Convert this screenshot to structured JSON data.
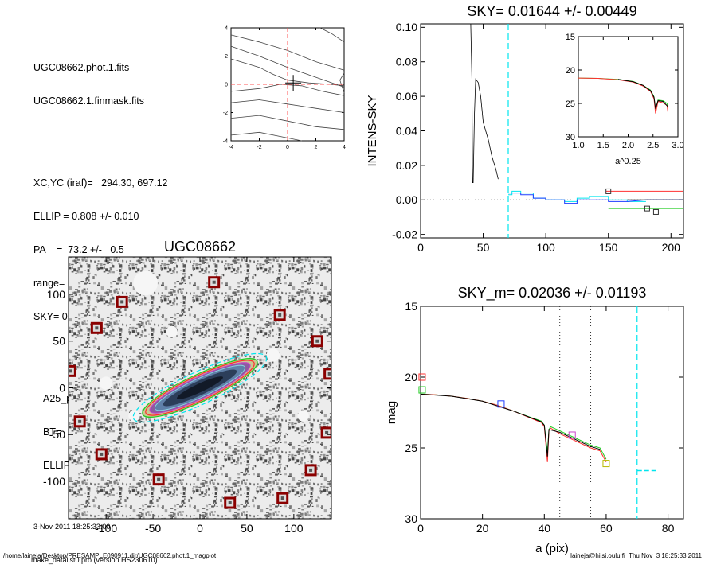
{
  "header": {
    "lines1": [
      "UGC08662.phot.1.fits",
      "UGC08662.1.finmask.fits"
    ],
    "lines2": [
      "XC,YC (iraf)=   294.30, 697.12",
      "ELLIP = 0.808 +/- 0.010",
      "PA    =  73.2 +/-   0.5",
      "range=   45.-   55.",
      "SKY= 0.01644 +/- 0.00449"
    ],
    "lines3": [
      "A25_pix= 57.6   T= 5.9",
      "BT=  15.44   MABS=-18.35",
      "ELLIP, PA= 0.808   73.1"
    ],
    "date": "3-Nov-2011 18:25:33.00",
    "program": "make_datalist0.pro (version HS230610)"
  },
  "footer": {
    "left": "/home/laineja/Desktop/PRESAMPLE090911.dir/UGC08662.phot.1_magplot",
    "right": "laineja@hiisi.oulu.fi  Thu Nov  3 18:25:33 2011"
  },
  "colors": {
    "cyan": "#00e5ee",
    "red": "#ff3030",
    "green": "#22cc22",
    "blue": "#1e3cff",
    "purple": "#cc44cc",
    "olive": "#b8b800",
    "maroon": "#8b0000"
  },
  "chart_data": [
    {
      "id": "contour",
      "type": "line",
      "title": "",
      "xlim": [
        -4,
        4
      ],
      "ylim": [
        -4,
        4
      ],
      "xticks": [
        -4,
        -2,
        0,
        2,
        4
      ],
      "yticks": [
        -4,
        -2,
        0,
        2,
        4
      ],
      "series": [
        {
          "values": [
            [
              -4,
              3.5
            ],
            [
              -2,
              3.0
            ],
            [
              0,
              2.4
            ],
            [
              2,
              1.6
            ],
            [
              4,
              1.0
            ]
          ]
        },
        {
          "values": [
            [
              -4,
              2.7
            ],
            [
              -2,
              2.0
            ],
            [
              0,
              1.2
            ],
            [
              2,
              0.5
            ],
            [
              4,
              -0.2
            ]
          ]
        },
        {
          "values": [
            [
              -4,
              1.8
            ],
            [
              -2,
              1.2
            ],
            [
              -1,
              0.7
            ],
            [
              0,
              0.3
            ],
            [
              1.5,
              0.1
            ],
            [
              3,
              0.0
            ],
            [
              4,
              -0.1
            ]
          ]
        },
        {
          "values": [
            [
              -4,
              -0.5
            ],
            [
              -2,
              -0.3
            ],
            [
              -0.5,
              0
            ],
            [
              1,
              -0.1
            ],
            [
              2.5,
              -0.5
            ],
            [
              4,
              -0.8
            ]
          ]
        },
        {
          "values": [
            [
              -4,
              -1.3
            ],
            [
              -2,
              -1.1
            ],
            [
              0,
              -1.4
            ],
            [
              2,
              -1.7
            ],
            [
              4,
              -2.0
            ]
          ]
        },
        {
          "values": [
            [
              -4,
              -2.4
            ],
            [
              -2,
              -2.2
            ],
            [
              0,
              -2.6
            ],
            [
              2,
              -3.0
            ],
            [
              4,
              -3.2
            ]
          ]
        },
        {
          "values": [
            [
              -4,
              -3.6
            ],
            [
              -2,
              -3.4
            ],
            [
              0,
              -3.8
            ],
            [
              1,
              -4.0
            ]
          ]
        },
        {
          "values": [
            [
              2.3,
              4
            ],
            [
              3.1,
              3.6
            ],
            [
              4,
              3.0
            ]
          ]
        },
        {
          "values": [
            [
              4,
              0.8
            ],
            [
              3.7,
              0.3
            ],
            [
              3.9,
              -0.3
            ],
            [
              4,
              -0.6
            ]
          ]
        }
      ],
      "center": [
        0.4,
        0.1
      ]
    },
    {
      "id": "sky",
      "type": "line",
      "title": "SKY= 0.01644 +/- 0.00449",
      "xlabel": "",
      "ylabel": "INTENS-SKY",
      "xlim": [
        0,
        210
      ],
      "ylim": [
        -0.022,
        0.102
      ],
      "xticks": [
        0,
        50,
        100,
        150,
        200
      ],
      "yticks": [
        -0.02,
        0.0,
        0.02,
        0.04,
        0.06,
        0.08,
        0.1
      ],
      "ytick_labels": [
        "-0.02",
        "0.00",
        "0.02",
        "0.04",
        "0.06",
        "0.08",
        "0.10"
      ],
      "xlabels_ticks": [
        "0",
        "50",
        "100",
        "150",
        "200"
      ],
      "vline": 70,
      "series": [
        {
          "name": "",
          "values": [
            [
              40,
              0.102
            ],
            [
              41,
              0.07
            ],
            [
              41.5,
              0.01
            ],
            [
              42,
              0.01
            ],
            [
              43,
              0.05
            ],
            [
              44,
              0.07
            ],
            [
              46,
              0.068
            ],
            [
              48,
              0.06
            ],
            [
              50,
              0.045
            ],
            [
              52,
              0.04
            ],
            [
              54,
              0.035
            ],
            [
              57,
              0.025
            ],
            [
              60,
              0.018
            ],
            [
              62,
              0.012
            ]
          ]
        },
        {
          "name": "",
          "values": [
            [
              70,
              0.003
            ],
            [
              73,
              0.003
            ],
            [
              73,
              0.005
            ],
            [
              80,
              0.005
            ],
            [
              80,
              0.004
            ],
            [
              90,
              0.004
            ],
            [
              90,
              0.001
            ],
            [
              100,
              0.001
            ],
            [
              100,
              0.0
            ],
            [
              115,
              0.0
            ],
            [
              115,
              -0.001
            ],
            [
              125,
              -0.001
            ],
            [
              125,
              0.001
            ],
            [
              135,
              0.001
            ],
            [
              135,
              0.002
            ],
            [
              150,
              0.002
            ],
            [
              150,
              0.0
            ],
            [
              165,
              0.0
            ],
            [
              165,
              -0.001
            ],
            [
              180,
              -0.001
            ]
          ]
        },
        {
          "name": "",
          "values": [
            [
              70,
              0.004
            ],
            [
              80,
              0.004
            ],
            [
              80,
              0.003
            ],
            [
              90,
              0.003
            ],
            [
              90,
              0.001
            ],
            [
              100,
              0.001
            ],
            [
              100,
              0.0
            ],
            [
              115,
              0.0
            ],
            [
              115,
              -0.002
            ],
            [
              125,
              -0.002
            ],
            [
              125,
              0.0
            ],
            [
              135,
              0.0
            ],
            [
              150,
              0.0
            ],
            [
              150,
              -0.001
            ],
            [
              165,
              -0.001
            ],
            [
              180,
              0.0
            ],
            [
              210,
              0.0
            ]
          ]
        }
      ],
      "tail_segments": [
        {
          "color": "red",
          "y": 0.005,
          "x": [
            148,
            210
          ]
        },
        {
          "color": "black",
          "y": 0.0,
          "x": [
            165,
            210
          ]
        },
        {
          "color": "green",
          "y": -0.005,
          "x": [
            150,
            210
          ]
        }
      ],
      "markers": [
        [
          150,
          0.005
        ],
        [
          181,
          -0.005
        ],
        [
          188,
          -0.007
        ]
      ]
    },
    {
      "id": "inset",
      "type": "line",
      "title": "",
      "xlabel": "a^0.25",
      "ylabel": "",
      "xlim": [
        1.0,
        3.0
      ],
      "ylim": [
        30,
        15
      ],
      "xticks": [
        1.0,
        1.5,
        2.0,
        2.5,
        3.0
      ],
      "xtick_labels": [
        "1.0",
        "1.5",
        "2.0",
        "2.5",
        "3.0"
      ],
      "yticks": [
        15,
        20,
        25,
        30
      ],
      "ytick_labels": [
        "15",
        "20",
        "25",
        "30"
      ],
      "series": [
        {
          "name": "",
          "color": "green",
          "values": [
            [
              1.0,
              21.2
            ],
            [
              1.4,
              21.25
            ],
            [
              1.8,
              21.4
            ],
            [
              2.1,
              21.7
            ],
            [
              2.3,
              22.3
            ],
            [
              2.45,
              23.0
            ],
            [
              2.52,
              24.0
            ],
            [
              2.55,
              26.0
            ],
            [
              2.6,
              24.5
            ],
            [
              2.7,
              24.6
            ],
            [
              2.78,
              25.0
            ],
            [
              2.8,
              26.0
            ]
          ]
        },
        {
          "name": "",
          "color": "red",
          "values": [
            [
              1.0,
              21.2
            ],
            [
              1.4,
              21.25
            ],
            [
              1.8,
              21.45
            ],
            [
              2.1,
              21.8
            ],
            [
              2.3,
              22.4
            ],
            [
              2.45,
              23.2
            ],
            [
              2.52,
              24.3
            ],
            [
              2.55,
              26.5
            ],
            [
              2.6,
              24.7
            ],
            [
              2.7,
              24.9
            ],
            [
              2.78,
              25.3
            ],
            [
              2.8,
              26.3
            ]
          ]
        },
        {
          "name": "",
          "color": "black",
          "values": [
            [
              1.8,
              21.4
            ],
            [
              2.1,
              21.75
            ],
            [
              2.3,
              22.3
            ],
            [
              2.45,
              23.1
            ],
            [
              2.52,
              24.1
            ],
            [
              2.55,
              25.8
            ],
            [
              2.6,
              24.6
            ],
            [
              2.7,
              24.7
            ],
            [
              2.8,
              25.5
            ]
          ]
        }
      ]
    },
    {
      "id": "image",
      "type": "scatter",
      "title": "UGC08662",
      "xlim": [
        -140,
        140
      ],
      "ylim": [
        -140,
        140
      ],
      "xticks": [
        -100,
        -50,
        0,
        50,
        100
      ],
      "xtick_labels": [
        "-100",
        "-50",
        "0",
        "50",
        "100"
      ],
      "yticks": [
        -100,
        -50,
        0,
        50,
        100
      ],
      "ytick_labels": [
        "-100",
        "-50",
        "0",
        "50",
        "100"
      ],
      "galaxy": {
        "pa": -25,
        "a": 60,
        "ellip": 0.808
      },
      "masked_stars": [
        [
          15,
          113
        ],
        [
          -83,
          92
        ],
        [
          -110,
          64
        ],
        [
          85,
          78
        ],
        [
          125,
          50
        ],
        [
          -138,
          18
        ],
        [
          138,
          15
        ],
        [
          -128,
          -36
        ],
        [
          -105,
          -71
        ],
        [
          135,
          -48
        ],
        [
          -44,
          -98
        ],
        [
          118,
          -88
        ],
        [
          32,
          -123
        ],
        [
          88,
          -118
        ]
      ],
      "holes": [
        [
          -58,
          112,
          13
        ],
        [
          -100,
          5,
          7
        ],
        [
          78,
          35,
          7
        ],
        [
          40,
          18,
          6
        ],
        [
          -30,
          60,
          6
        ],
        [
          110,
          -30,
          6
        ],
        [
          -70,
          -30,
          6
        ]
      ]
    },
    {
      "id": "mag",
      "type": "line",
      "title": "SKY_m=  0.02036 +/- 0.01193",
      "xlabel": "a (pix)",
      "ylabel": "mag",
      "xlim": [
        0,
        85
      ],
      "ylim": [
        30,
        15
      ],
      "xticks": [
        0,
        20,
        40,
        60,
        80
      ],
      "xtick_labels": [
        "0",
        "20",
        "40",
        "60",
        "80"
      ],
      "yticks": [
        15,
        20,
        25,
        30
      ],
      "ytick_labels": [
        "15",
        "20",
        "25",
        "30"
      ],
      "vlines_dotted": [
        45,
        55
      ],
      "vline_cyan": 70,
      "cyan_segment": {
        "y": 26.6,
        "x": [
          70,
          76
        ]
      },
      "series": [
        {
          "name": "",
          "color": "green",
          "values": [
            [
              0,
              21.2
            ],
            [
              5,
              21.25
            ],
            [
              10,
              21.35
            ],
            [
              15,
              21.5
            ],
            [
              20,
              21.7
            ],
            [
              25,
              22.0
            ],
            [
              30,
              22.4
            ],
            [
              35,
              22.8
            ],
            [
              39,
              23.1
            ],
            [
              40,
              23.4
            ],
            [
              41,
              25.3
            ],
            [
              41.5,
              23.7
            ],
            [
              42,
              23.5
            ],
            [
              45,
              23.8
            ],
            [
              50,
              24.3
            ],
            [
              55,
              24.8
            ],
            [
              58,
              25.0
            ],
            [
              60,
              25.8
            ]
          ]
        },
        {
          "name": "",
          "color": "red",
          "values": [
            [
              0,
              21.2
            ],
            [
              5,
              21.25
            ],
            [
              10,
              21.35
            ],
            [
              15,
              21.5
            ],
            [
              20,
              21.7
            ],
            [
              25,
              22.0
            ],
            [
              30,
              22.4
            ],
            [
              35,
              22.85
            ],
            [
              39,
              23.2
            ],
            [
              40,
              23.5
            ],
            [
              41,
              26.0
            ],
            [
              41.5,
              23.8
            ],
            [
              42,
              23.6
            ],
            [
              45,
              24.0
            ],
            [
              50,
              24.5
            ],
            [
              55,
              25.0
            ],
            [
              58,
              25.2
            ],
            [
              60,
              26.0
            ]
          ]
        },
        {
          "name": "",
          "color": "black",
          "values": [
            [
              0,
              21.2
            ],
            [
              10,
              21.35
            ],
            [
              20,
              21.7
            ],
            [
              30,
              22.4
            ],
            [
              39,
              23.15
            ],
            [
              40,
              23.4
            ],
            [
              41,
              25.6
            ],
            [
              41.5,
              23.7
            ],
            [
              45,
              23.9
            ],
            [
              50,
              24.4
            ],
            [
              55,
              24.9
            ],
            [
              58,
              25.1
            ]
          ]
        }
      ],
      "markers": [
        {
          "color": "red",
          "x": 0.5,
          "y": 20.0
        },
        {
          "color": "green",
          "x": 0.5,
          "y": 20.9
        },
        {
          "color": "blue",
          "x": 26,
          "y": 21.9
        },
        {
          "color": "purple",
          "x": 49,
          "y": 24.1
        },
        {
          "color": "olive",
          "x": 60,
          "y": 26.1
        }
      ]
    }
  ]
}
